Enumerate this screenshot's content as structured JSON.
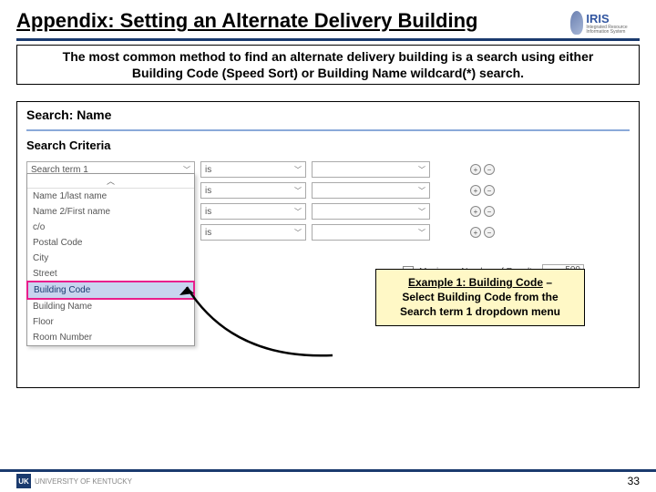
{
  "header": {
    "title": "Appendix: Setting an Alternate Delivery Building",
    "logo_text": "IRIS",
    "logo_subtitle": "Integrated Resource Information System"
  },
  "instruction": {
    "line1": "The most common method to find an alternate delivery building is a search using either",
    "line2": "Building Code (Speed Sort) or Building Name wildcard(*) search."
  },
  "screenshot": {
    "title": "Search: Name",
    "subtitle": "Search Criteria",
    "rows": [
      {
        "term": "Search term 1",
        "op": "is"
      },
      {
        "term": "",
        "op": "is"
      },
      {
        "term": "",
        "op": "is"
      },
      {
        "term": "",
        "op": "is"
      }
    ],
    "dropdown_options": [
      "Name 1/last name",
      "Name 2/First name",
      "c/o",
      "Postal Code",
      "City",
      "Street",
      "Building Code",
      "Building Name",
      "Floor",
      "Room Number"
    ],
    "highlight_index": 6,
    "max_results": {
      "label": "Maximum Number of Results",
      "value": "500",
      "checked": true
    }
  },
  "callout": {
    "title": "Example 1: Building Code",
    "sep": " – ",
    "rest": "Select Building Code from the Search term 1 dropdown menu"
  },
  "footer": {
    "uk_badge": "UK",
    "uk_text": "UNIVERSITY OF KENTUCKY",
    "page": "33"
  },
  "colors": {
    "accent": "#1a3a6e",
    "highlight_border": "#e91e8c",
    "callout_bg": "#fff8c6"
  }
}
